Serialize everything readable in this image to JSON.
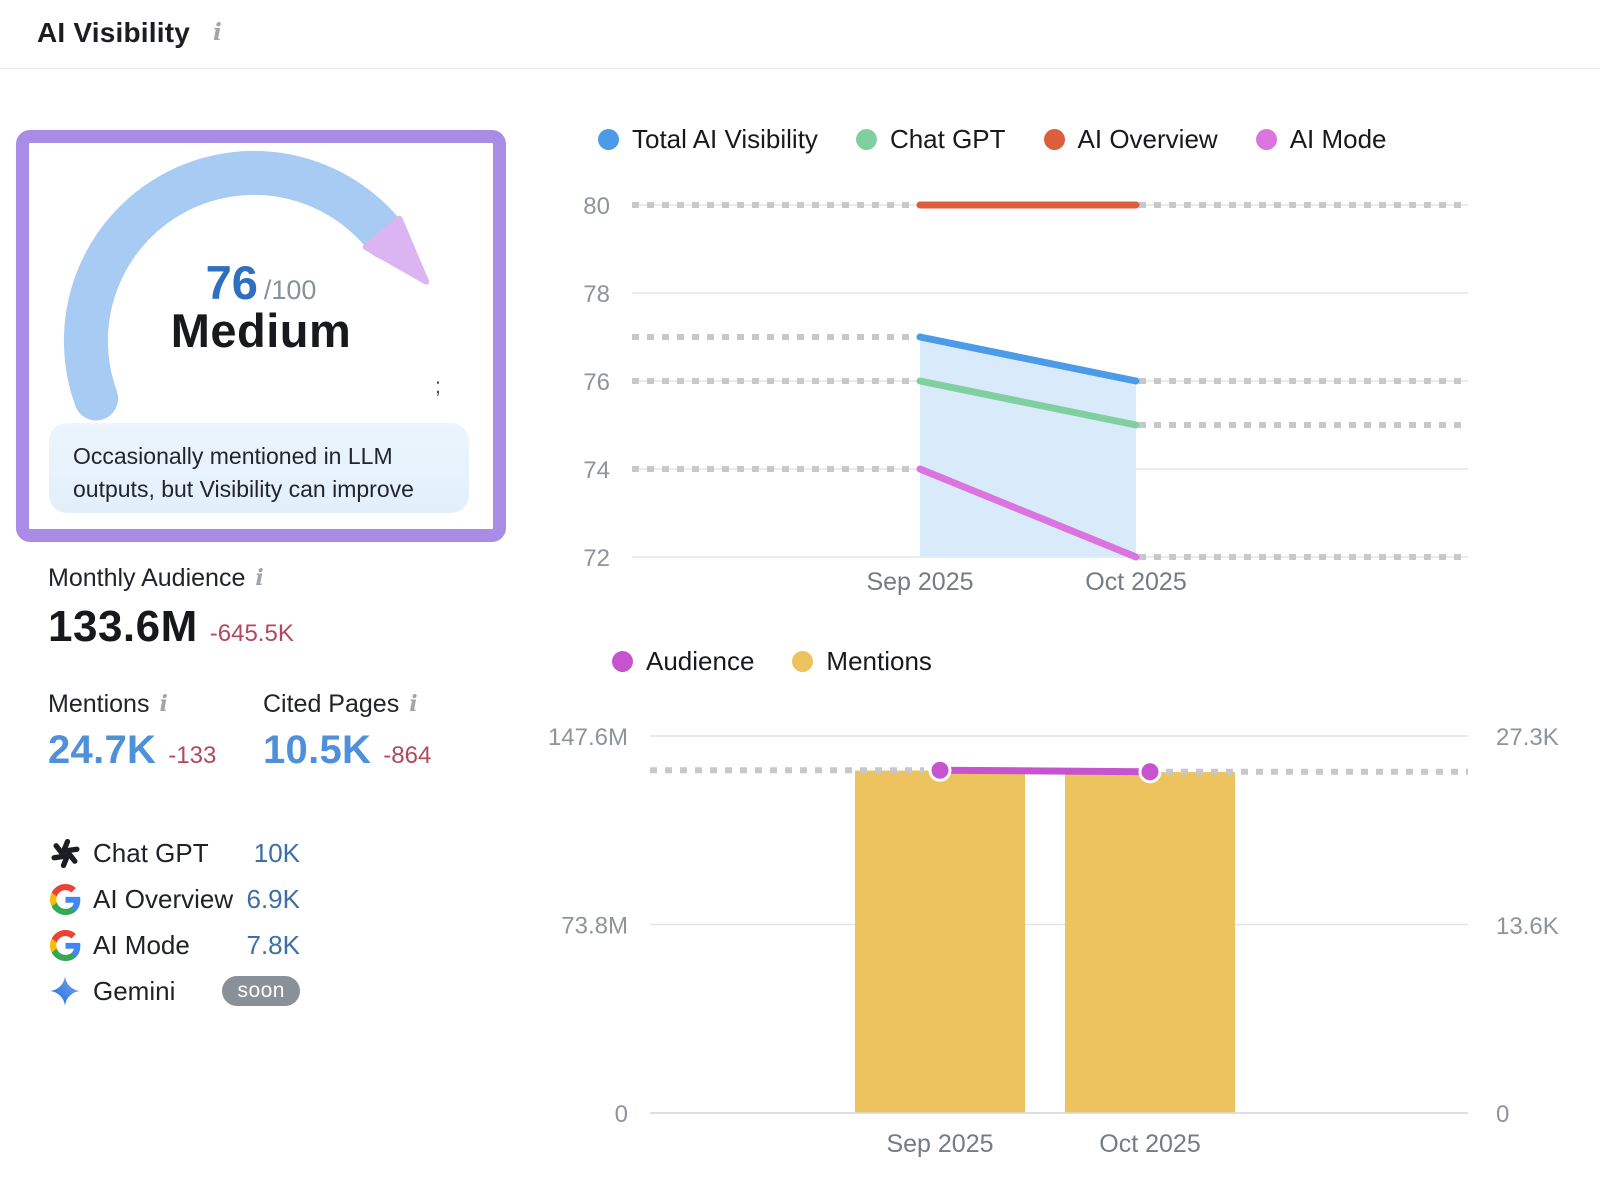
{
  "header": {
    "title": "AI Visibility"
  },
  "icons": {
    "info": "i"
  },
  "gauge": {
    "score": "76",
    "out_of": "/100",
    "label": "Medium",
    "tip": "Occasionally mentioned in LLM outputs, but Visibility can improve",
    "stray_glyph": ";",
    "arc_color": "#a7cbf3",
    "remainder_color": "#dbb5f2",
    "border_color": "#a88ce6"
  },
  "metrics": {
    "monthly_audience": {
      "label": "Monthly Audience",
      "value": "133.6M",
      "delta": "-645.5K"
    },
    "mentions": {
      "label": "Mentions",
      "value": "24.7K",
      "delta": "-133"
    },
    "cited_pages": {
      "label": "Cited Pages",
      "value": "10.5K",
      "delta": "-864"
    }
  },
  "platforms": {
    "rows": [
      {
        "icon": "chatgpt-icon",
        "name": "Chat GPT",
        "value": "10K"
      },
      {
        "icon": "google-icon",
        "name": "AI Overview",
        "value": "6.9K"
      },
      {
        "icon": "google-icon",
        "name": "AI Mode",
        "value": "7.8K"
      },
      {
        "icon": "gemini-icon",
        "name": "Gemini",
        "badge": "soon"
      }
    ]
  },
  "chart_data": [
    {
      "type": "line",
      "categories": [
        "Sep 2025",
        "Oct 2025"
      ],
      "series": [
        {
          "name": "Total AI Visibility",
          "color": "#4c9be8",
          "values": [
            77,
            76
          ],
          "fill": "#d9ebfa"
        },
        {
          "name": "Chat GPT",
          "color": "#7fcfa1",
          "values": [
            76,
            75
          ]
        },
        {
          "name": "AI Overview",
          "color": "#db5f3c",
          "values": [
            80,
            80
          ]
        },
        {
          "name": "AI Mode",
          "color": "#db74de",
          "values": [
            74,
            72
          ]
        }
      ],
      "ylim": [
        72,
        80
      ],
      "yticks": [
        80,
        78,
        76,
        74,
        72
      ],
      "legend_position": "top",
      "grid": true,
      "projection_dashes": true
    },
    {
      "type": "bar+line",
      "categories": [
        "Sep 2025",
        "Oct 2025"
      ],
      "bar_series": {
        "name": "Mentions",
        "color": "#ecc35e",
        "axis": "right",
        "values": [
          24.8,
          24.7
        ],
        "unit": "K"
      },
      "line_series": {
        "name": "Audience",
        "color": "#c554ce",
        "axis": "left",
        "values": [
          134.2,
          133.6
        ],
        "unit": "M"
      },
      "left_axis": {
        "max": 147.6,
        "unit": "M",
        "ticks": [
          {
            "label": "147.6M",
            "v": 147.6
          },
          {
            "label": "73.8M",
            "v": 73.8
          },
          {
            "label": "0",
            "v": 0
          }
        ]
      },
      "right_axis": {
        "max": 27.3,
        "unit": "K",
        "ticks": [
          {
            "label": "27.3K",
            "v": 27.3
          },
          {
            "label": "13.6K",
            "v": 13.6
          },
          {
            "label": "0",
            "v": 0
          }
        ]
      },
      "legend_position": "top",
      "grid": true
    }
  ]
}
